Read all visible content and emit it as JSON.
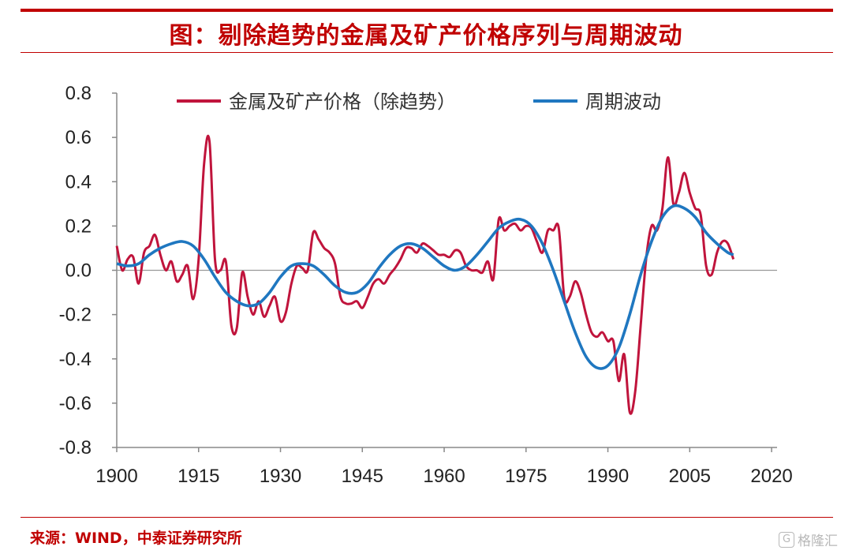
{
  "header": {
    "title": "图：剔除趋势的金属及矿产价格序列与周期波动"
  },
  "footer": {
    "source": "来源：WIND，中泰证券研究所",
    "watermark": "格隆汇"
  },
  "chart_data": {
    "type": "line",
    "title": "图：剔除趋势的金属及矿产价格序列与周期波动",
    "xlabel": "",
    "ylabel": "",
    "xlim": [
      1900,
      2021
    ],
    "ylim": [
      -0.8,
      0.8
    ],
    "x_ticks": [
      "1900",
      "1915",
      "1930",
      "1945",
      "1960",
      "1975",
      "1990",
      "2005",
      "2020"
    ],
    "y_ticks": [
      "0.8",
      "0.6",
      "0.4",
      "0.2",
      "0.0",
      "-0.2",
      "-0.4",
      "-0.6",
      "-0.8"
    ],
    "grid": false,
    "legend_position": "top",
    "series": [
      {
        "name": "金属及矿产价格（除趋势）",
        "color": "#c0143c",
        "points": [
          [
            1900,
            0.11
          ],
          [
            1901,
            0.0
          ],
          [
            1902,
            0.05
          ],
          [
            1903,
            0.06
          ],
          [
            1904,
            -0.06
          ],
          [
            1905,
            0.08
          ],
          [
            1906,
            0.11
          ],
          [
            1907,
            0.16
          ],
          [
            1908,
            0.07
          ],
          [
            1909,
            0.0
          ],
          [
            1910,
            0.04
          ],
          [
            1911,
            -0.05
          ],
          [
            1912,
            -0.02
          ],
          [
            1913,
            0.02
          ],
          [
            1914,
            -0.13
          ],
          [
            1915,
            0.05
          ],
          [
            1916,
            0.48
          ],
          [
            1917,
            0.58
          ],
          [
            1918,
            0.05
          ],
          [
            1919,
            0.0
          ],
          [
            1920,
            0.04
          ],
          [
            1921,
            -0.25
          ],
          [
            1922,
            -0.26
          ],
          [
            1923,
            -0.01
          ],
          [
            1924,
            -0.12
          ],
          [
            1925,
            -0.2
          ],
          [
            1926,
            -0.14
          ],
          [
            1927,
            -0.21
          ],
          [
            1928,
            -0.16
          ],
          [
            1929,
            -0.12
          ],
          [
            1930,
            -0.23
          ],
          [
            1931,
            -0.19
          ],
          [
            1932,
            -0.06
          ],
          [
            1933,
            0.02
          ],
          [
            1934,
            0.01
          ],
          [
            1935,
            0.0
          ],
          [
            1936,
            0.17
          ],
          [
            1937,
            0.14
          ],
          [
            1938,
            0.1
          ],
          [
            1939,
            0.08
          ],
          [
            1940,
            0.03
          ],
          [
            1941,
            -0.12
          ],
          [
            1942,
            -0.15
          ],
          [
            1943,
            -0.15
          ],
          [
            1944,
            -0.14
          ],
          [
            1945,
            -0.17
          ],
          [
            1946,
            -0.12
          ],
          [
            1947,
            -0.06
          ],
          [
            1948,
            -0.04
          ],
          [
            1949,
            -0.06
          ],
          [
            1950,
            -0.02
          ],
          [
            1951,
            0.01
          ],
          [
            1952,
            0.05
          ],
          [
            1953,
            0.1
          ],
          [
            1954,
            0.1
          ],
          [
            1955,
            0.08
          ],
          [
            1956,
            0.12
          ],
          [
            1957,
            0.11
          ],
          [
            1958,
            0.09
          ],
          [
            1959,
            0.07
          ],
          [
            1960,
            0.07
          ],
          [
            1961,
            0.06
          ],
          [
            1962,
            0.09
          ],
          [
            1963,
            0.08
          ],
          [
            1964,
            0.02
          ],
          [
            1965,
            0.0
          ],
          [
            1966,
            0.0
          ],
          [
            1967,
            -0.01
          ],
          [
            1968,
            0.04
          ],
          [
            1969,
            -0.04
          ],
          [
            1970,
            0.23
          ],
          [
            1971,
            0.18
          ],
          [
            1972,
            0.2
          ],
          [
            1973,
            0.21
          ],
          [
            1974,
            0.18
          ],
          [
            1975,
            0.2
          ],
          [
            1976,
            0.19
          ],
          [
            1977,
            0.13
          ],
          [
            1978,
            0.08
          ],
          [
            1979,
            0.18
          ],
          [
            1980,
            0.18
          ],
          [
            1981,
            0.19
          ],
          [
            1982,
            -0.12
          ],
          [
            1983,
            -0.12
          ],
          [
            1984,
            -0.05
          ],
          [
            1985,
            -0.1
          ],
          [
            1986,
            -0.2
          ],
          [
            1987,
            -0.28
          ],
          [
            1988,
            -0.3
          ],
          [
            1989,
            -0.28
          ],
          [
            1990,
            -0.32
          ],
          [
            1991,
            -0.32
          ],
          [
            1992,
            -0.5
          ],
          [
            1993,
            -0.38
          ],
          [
            1994,
            -0.64
          ],
          [
            1995,
            -0.55
          ],
          [
            1996,
            -0.25
          ],
          [
            1997,
            0.05
          ],
          [
            1998,
            0.2
          ],
          [
            1999,
            0.18
          ],
          [
            2000,
            0.28
          ],
          [
            2001,
            0.51
          ],
          [
            2002,
            0.3
          ],
          [
            2003,
            0.35
          ],
          [
            2004,
            0.44
          ],
          [
            2005,
            0.35
          ],
          [
            2006,
            0.28
          ],
          [
            2007,
            0.25
          ],
          [
            2008,
            0.02
          ],
          [
            2009,
            -0.02
          ],
          [
            2010,
            0.08
          ],
          [
            2011,
            0.13
          ],
          [
            2012,
            0.12
          ],
          [
            2013,
            0.05
          ]
        ]
      },
      {
        "name": "周期波动",
        "color": "#1f77c0",
        "points": [
          [
            1900,
            0.03
          ],
          [
            1902,
            0.02
          ],
          [
            1904,
            0.03
          ],
          [
            1906,
            0.07
          ],
          [
            1908,
            0.1
          ],
          [
            1910,
            0.12
          ],
          [
            1912,
            0.13
          ],
          [
            1914,
            0.11
          ],
          [
            1916,
            0.05
          ],
          [
            1918,
            -0.03
          ],
          [
            1920,
            -0.1
          ],
          [
            1922,
            -0.14
          ],
          [
            1924,
            -0.16
          ],
          [
            1926,
            -0.15
          ],
          [
            1928,
            -0.1
          ],
          [
            1930,
            -0.03
          ],
          [
            1932,
            0.02
          ],
          [
            1934,
            0.03
          ],
          [
            1936,
            0.02
          ],
          [
            1938,
            -0.02
          ],
          [
            1940,
            -0.07
          ],
          [
            1942,
            -0.1
          ],
          [
            1944,
            -0.1
          ],
          [
            1946,
            -0.06
          ],
          [
            1948,
            0.01
          ],
          [
            1950,
            0.07
          ],
          [
            1952,
            0.11
          ],
          [
            1954,
            0.12
          ],
          [
            1956,
            0.1
          ],
          [
            1958,
            0.06
          ],
          [
            1960,
            0.02
          ],
          [
            1962,
            0.0
          ],
          [
            1964,
            0.02
          ],
          [
            1966,
            0.07
          ],
          [
            1968,
            0.13
          ],
          [
            1970,
            0.19
          ],
          [
            1972,
            0.22
          ],
          [
            1974,
            0.23
          ],
          [
            1976,
            0.2
          ],
          [
            1978,
            0.12
          ],
          [
            1980,
            0.0
          ],
          [
            1982,
            -0.14
          ],
          [
            1984,
            -0.28
          ],
          [
            1986,
            -0.39
          ],
          [
            1988,
            -0.44
          ],
          [
            1990,
            -0.43
          ],
          [
            1992,
            -0.35
          ],
          [
            1994,
            -0.2
          ],
          [
            1996,
            -0.02
          ],
          [
            1998,
            0.13
          ],
          [
            2000,
            0.24
          ],
          [
            2002,
            0.29
          ],
          [
            2004,
            0.28
          ],
          [
            2006,
            0.24
          ],
          [
            2008,
            0.17
          ],
          [
            2010,
            0.12
          ],
          [
            2012,
            0.08
          ],
          [
            2013,
            0.07
          ]
        ]
      }
    ]
  }
}
